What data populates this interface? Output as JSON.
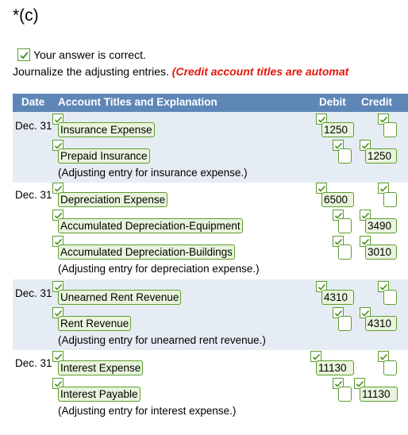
{
  "part_label": "*(c)",
  "status": "Your answer is correct.",
  "instruction": "Journalize the adjusting entries.",
  "instruction_note": "(Credit account titles are automat",
  "table": {
    "headers": {
      "date": "Date",
      "account": "Account Titles and Explanation",
      "debit": "Debit",
      "credit": "Credit"
    },
    "entries": [
      {
        "date": "Dec. 31",
        "debit_account": "Insurance Expense",
        "debit_amount": "1250",
        "credit_account": "Prepaid Insurance",
        "credit_amount": "1250",
        "explanation": "(Adjusting entry for insurance expense.)"
      },
      {
        "date": "Dec. 31",
        "debit_account": "Depreciation Expense",
        "debit_amount": "6500",
        "credit_account": "Accumulated Depreciation-Equipment",
        "credit_amount": "3490",
        "credit_account_2": "Accumulated Depreciation-Buildings",
        "credit_amount_2": "3010",
        "explanation": "(Adjusting entry for depreciation expense.)"
      },
      {
        "date": "Dec. 31",
        "debit_account": "Unearned Rent Revenue",
        "debit_amount": "4310",
        "credit_account": "Rent Revenue",
        "credit_amount": "4310",
        "explanation": "(Adjusting entry for unearned rent revenue.)"
      },
      {
        "date": "Dec. 31",
        "debit_account": "Interest Expense",
        "debit_amount": "11130",
        "credit_account": "Interest Payable",
        "credit_amount": "11130",
        "explanation": "(Adjusting entry for interest expense.)"
      }
    ]
  },
  "colors": {
    "header_bg": "#5e87b8",
    "shaded_row": "#e6ecf3",
    "check_green": "#5c9e2d",
    "note_red": "#e3170a"
  },
  "icons": {
    "check": "check-icon"
  }
}
